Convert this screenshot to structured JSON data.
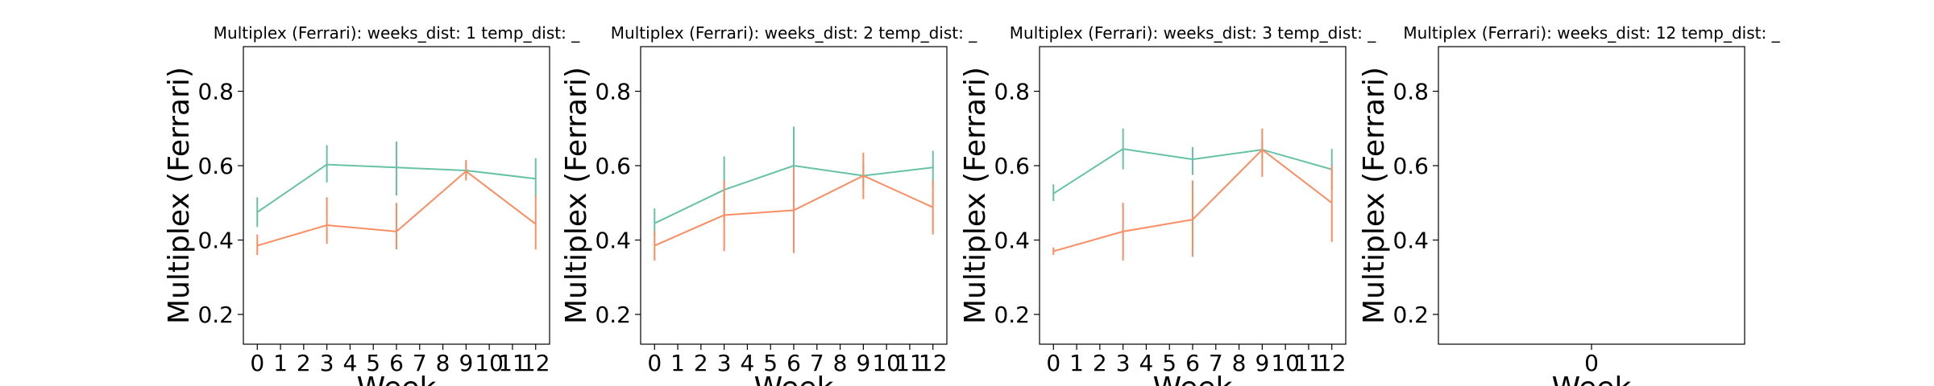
{
  "chart_data": [
    {
      "type": "line",
      "title": "Multiplex (Ferrari):  weeks_dist: 1  temp_dist: _",
      "xlabel": "Week",
      "ylabel": "Multiplex (Ferrari)",
      "xlim": [
        -0.6,
        12.6
      ],
      "ylim": [
        0.12,
        0.92
      ],
      "xticks": [
        "0",
        "1",
        "2",
        "3",
        "4",
        "5",
        "6",
        "7",
        "8",
        "9",
        "10",
        "11",
        "12"
      ],
      "yticks": [
        "0.2",
        "0.4",
        "0.6",
        "0.8"
      ],
      "series": [
        {
          "color": "#66c2a5",
          "x": [
            0,
            3,
            6,
            9,
            12
          ],
          "values": [
            0.475,
            0.603,
            0.595,
            0.587,
            0.565
          ],
          "err_lo": [
            0.435,
            0.555,
            0.52,
            0.565,
            0.515
          ],
          "err_hi": [
            0.515,
            0.655,
            0.665,
            0.61,
            0.62
          ]
        },
        {
          "color": "#fc8d62",
          "x": [
            0,
            3,
            6,
            9,
            12
          ],
          "values": [
            0.385,
            0.44,
            0.423,
            0.585,
            0.443
          ],
          "err_lo": [
            0.36,
            0.39,
            0.375,
            0.56,
            0.375
          ],
          "err_hi": [
            0.415,
            0.515,
            0.5,
            0.615,
            0.52
          ]
        }
      ]
    },
    {
      "type": "line",
      "title": "Multiplex (Ferrari):  weeks_dist: 2  temp_dist: _",
      "xlabel": "Week",
      "ylabel": "Multiplex (Ferrari)",
      "xlim": [
        -0.6,
        12.6
      ],
      "ylim": [
        0.12,
        0.92
      ],
      "xticks": [
        "0",
        "1",
        "2",
        "3",
        "4",
        "5",
        "6",
        "7",
        "8",
        "9",
        "10",
        "11",
        "12"
      ],
      "yticks": [
        "0.2",
        "0.4",
        "0.6",
        "0.8"
      ],
      "series": [
        {
          "color": "#66c2a5",
          "x": [
            0,
            3,
            6,
            9,
            12
          ],
          "values": [
            0.445,
            0.535,
            0.6,
            0.573,
            0.595
          ],
          "err_lo": [
            0.41,
            0.45,
            0.5,
            0.54,
            0.545
          ],
          "err_hi": [
            0.485,
            0.625,
            0.705,
            0.605,
            0.64
          ]
        },
        {
          "color": "#fc8d62",
          "x": [
            0,
            3,
            6,
            9,
            12
          ],
          "values": [
            0.385,
            0.467,
            0.48,
            0.573,
            0.488
          ],
          "err_lo": [
            0.345,
            0.37,
            0.365,
            0.51,
            0.415
          ],
          "err_hi": [
            0.425,
            0.56,
            0.595,
            0.635,
            0.56
          ]
        }
      ]
    },
    {
      "type": "line",
      "title": "Multiplex (Ferrari):  weeks_dist: 3  temp_dist: _",
      "xlabel": "Week",
      "ylabel": "Multiplex (Ferrari)",
      "xlim": [
        -0.6,
        12.6
      ],
      "ylim": [
        0.12,
        0.92
      ],
      "xticks": [
        "0",
        "1",
        "2",
        "3",
        "4",
        "5",
        "6",
        "7",
        "8",
        "9",
        "10",
        "11",
        "12"
      ],
      "yticks": [
        "0.2",
        "0.4",
        "0.6",
        "0.8"
      ],
      "series": [
        {
          "color": "#66c2a5",
          "x": [
            0,
            3,
            6,
            9,
            12
          ],
          "values": [
            0.525,
            0.645,
            0.617,
            0.643,
            0.59
          ],
          "err_lo": [
            0.505,
            0.59,
            0.575,
            0.62,
            0.535
          ],
          "err_hi": [
            0.55,
            0.7,
            0.65,
            0.665,
            0.645
          ]
        },
        {
          "color": "#fc8d62",
          "x": [
            0,
            3,
            6,
            9,
            12
          ],
          "values": [
            0.37,
            0.423,
            0.455,
            0.643,
            0.5
          ],
          "err_lo": [
            0.36,
            0.345,
            0.355,
            0.57,
            0.395
          ],
          "err_hi": [
            0.38,
            0.5,
            0.56,
            0.7,
            0.6
          ]
        }
      ]
    },
    {
      "type": "line",
      "title": "Multiplex (Ferrari):  weeks_dist: 12  temp_dist: _",
      "xlabel": "Week",
      "ylabel": "Multiplex (Ferrari)",
      "xlim": [
        -0.055,
        0.055
      ],
      "ylim": [
        0.12,
        0.92
      ],
      "xticks": [
        "0"
      ],
      "yticks": [
        "0.2",
        "0.4",
        "0.6",
        "0.8"
      ],
      "series": []
    }
  ]
}
